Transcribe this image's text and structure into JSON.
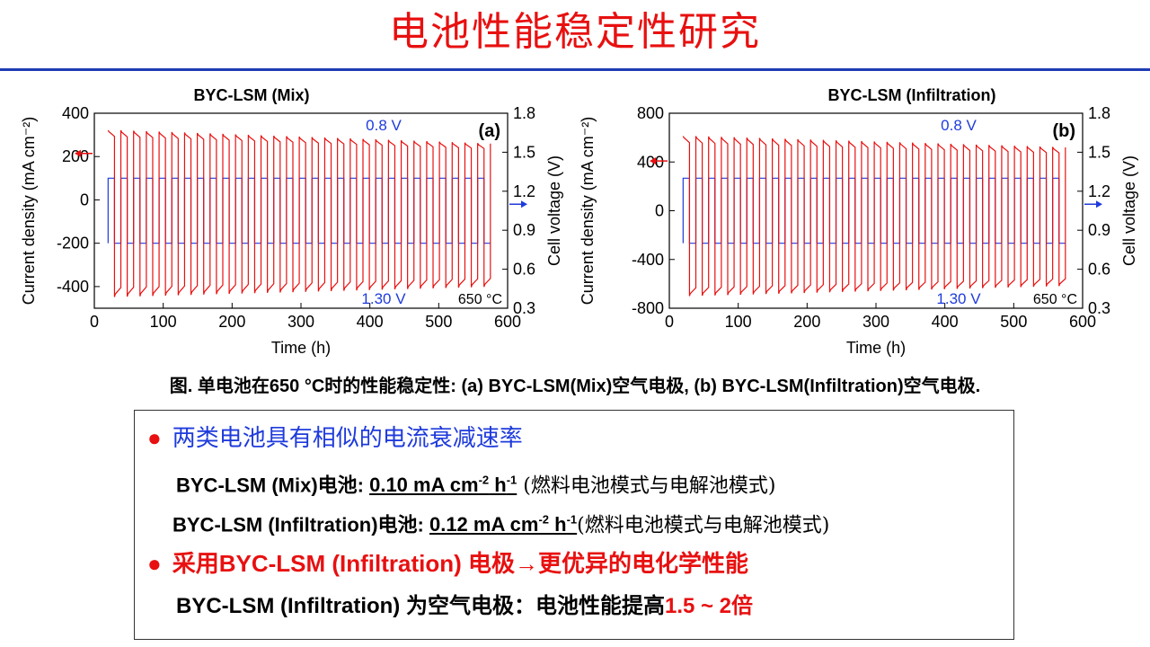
{
  "page": {
    "title": "电池性能稳定性研究",
    "caption": "图. 单电池在650 °C时的性能稳定性: (a) BYC-LSM(Mix)空气电极, (b) BYC-LSM(Infiltration)空气电极."
  },
  "colors": {
    "title": "#e81010",
    "rule": "#1f3bb3",
    "current": "#e81010",
    "voltage": "#1f3bdc"
  },
  "chart_data": [
    {
      "type": "line",
      "title": "BYC-LSM (Mix)",
      "panel_label": "(a)",
      "xlabel": "Time (h)",
      "ylabel": "Current density (mA cm⁻²)",
      "y2label": "Cell voltage (V)",
      "xlim": [
        0,
        600
      ],
      "xticks": [
        "0",
        "100",
        "200",
        "300",
        "400",
        "500",
        "600"
      ],
      "ylim": [
        -500,
        400
      ],
      "yticks": [
        "-400",
        "-200",
        "0",
        "200",
        "400"
      ],
      "y2lim": [
        0.3,
        1.8
      ],
      "y2ticks": [
        "0.3",
        "0.6",
        "0.9",
        "1.2",
        "1.5",
        "1.8"
      ],
      "annotations": {
        "top": "0.8 V",
        "bottom": "1.30 V",
        "temperature": "650 °C"
      },
      "cycles": {
        "start": 20,
        "end": 575,
        "count": 30
      },
      "series": [
        {
          "name": "Current density",
          "axis": "left",
          "fc_start": 315,
          "fc_end": 255,
          "ec_start": -435,
          "ec_end": -390
        },
        {
          "name": "Cell voltage",
          "axis": "right",
          "high": 1.3,
          "low": 0.8
        }
      ]
    },
    {
      "type": "line",
      "title": "BYC-LSM (Infiltration)",
      "panel_label": "(b)",
      "xlabel": "Time (h)",
      "ylabel": "Current density (mA cm⁻²)",
      "y2label": "Cell voltage (V)",
      "xlim": [
        0,
        600
      ],
      "xticks": [
        "0",
        "100",
        "200",
        "300",
        "400",
        "500",
        "600"
      ],
      "ylim": [
        -800,
        800
      ],
      "yticks": [
        "-800",
        "-400",
        "0",
        "400",
        "800"
      ],
      "y2lim": [
        0.3,
        1.8
      ],
      "y2ticks": [
        "0.3",
        "0.6",
        "0.9",
        "1.2",
        "1.5",
        "1.8"
      ],
      "annotations": {
        "top": "0.8 V",
        "bottom": "1.30 V",
        "temperature": "650 °C"
      },
      "cycles": {
        "start": 20,
        "end": 575,
        "count": 30
      },
      "series": [
        {
          "name": "Current density",
          "axis": "left",
          "fc_start": 600,
          "fc_end": 510,
          "ec_start": -680,
          "ec_end": -600
        },
        {
          "name": "Cell voltage",
          "axis": "right",
          "high": 1.3,
          "low": 0.8
        }
      ]
    }
  ],
  "summary": {
    "bullet1": "两类电池具有相似的电流衰减速率",
    "mix_label": "BYC-LSM (Mix)电池: ",
    "mix_rate_value": "0.10 mA cm",
    "mix_rate_exp1": "-2",
    "mix_rate_unit": " h",
    "mix_rate_exp2": "-1",
    "mix_mode": " (燃料电池模式与电解池模式)",
    "inf_label": "BYC-LSM (Infiltration)电池: ",
    "inf_rate_value": "0.12 mA cm",
    "inf_rate_exp1": "-2",
    "inf_rate_unit": " h",
    "inf_rate_exp2": "-1",
    "inf_mode": "(燃料电池模式与电解池模式)",
    "bullet2": "采用BYC-LSM (Infiltration) 电极→更优异的电化学性能",
    "conclusion_text": "BYC-LSM (Infiltration) 为空气电极：电池性能提高",
    "conclusion_factor": "1.5 ~ 2倍"
  }
}
